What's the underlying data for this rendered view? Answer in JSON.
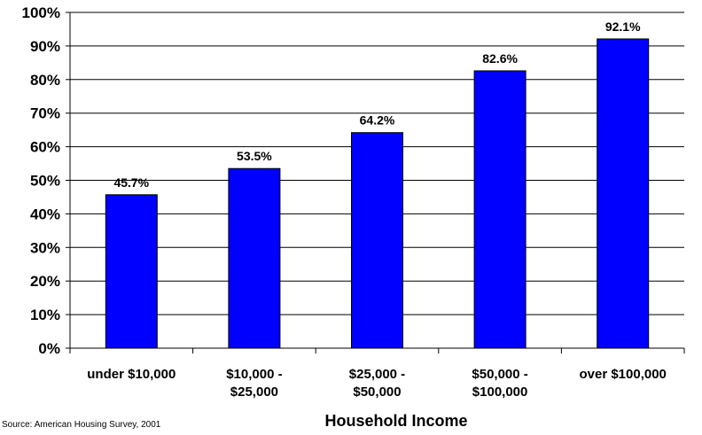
{
  "chart_data": {
    "type": "bar",
    "categories": [
      "under $10,000",
      "$10,000 - $25,000",
      "$25,000 - $50,000",
      "$50,000 - $100,000",
      "over $100,000"
    ],
    "category_lines": [
      [
        "under $10,000"
      ],
      [
        "$10,000 -",
        "$25,000"
      ],
      [
        "$25,000 -",
        "$50,000"
      ],
      [
        "$50,000 -",
        "$100,000"
      ],
      [
        "over $100,000"
      ]
    ],
    "values": [
      45.7,
      53.5,
      64.2,
      82.6,
      92.1
    ],
    "data_labels": [
      "45.7%",
      "53.5%",
      "64.2%",
      "82.6%",
      "92.1%"
    ],
    "title": "",
    "xlabel": "Household Income",
    "ylabel": "",
    "ylim": [
      0,
      100
    ],
    "yticks": [
      0,
      10,
      20,
      30,
      40,
      50,
      60,
      70,
      80,
      90,
      100
    ],
    "ytick_labels": [
      "0%",
      "10%",
      "20%",
      "30%",
      "40%",
      "50%",
      "60%",
      "70%",
      "80%",
      "90%",
      "100%"
    ],
    "grid": true,
    "legend": false,
    "bar_color": "#0000FF",
    "bar_edge_color": "#000000",
    "source": "Source: American Housing Survey, 2001"
  }
}
